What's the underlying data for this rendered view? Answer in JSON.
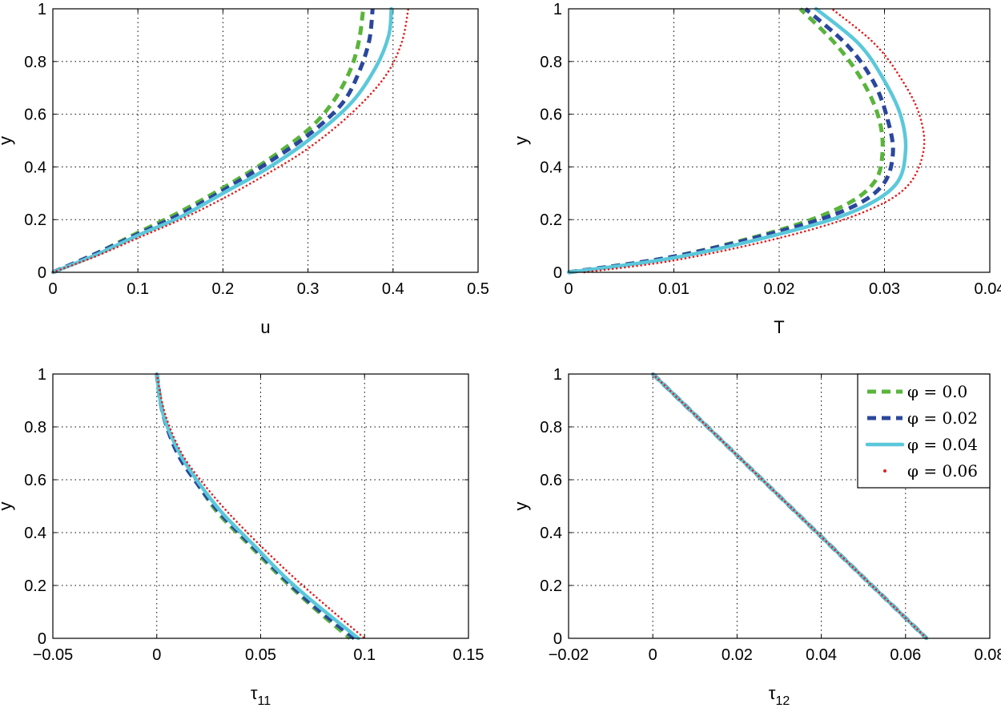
{
  "legend": {
    "entries": [
      {
        "label": "φ = 0.0",
        "color": "#5ab43c",
        "style": "dash"
      },
      {
        "label": "φ = 0.02",
        "color": "#2b479b",
        "style": "dash"
      },
      {
        "label": "φ = 0.04",
        "color": "#5bc8da",
        "style": "solid"
      },
      {
        "label": "φ = 0.06",
        "color": "#e02020",
        "style": "dot"
      }
    ]
  },
  "chart_data": [
    {
      "type": "line",
      "xlabel": "u",
      "ylabel": "y",
      "xlim": [
        0,
        0.5
      ],
      "ylim": [
        0,
        1
      ],
      "xticks": [
        "0",
        "0.1",
        "0.2",
        "0.3",
        "0.4",
        "0.5"
      ],
      "yticks": [
        "0",
        "0.2",
        "0.4",
        "0.6",
        "0.8",
        "1"
      ],
      "grid": true,
      "series": [
        {
          "name": "φ = 0.0",
          "x": [
            0,
            0.05,
            0.1,
            0.15,
            0.2,
            0.25,
            0.3,
            0.33,
            0.35,
            0.36,
            0.365
          ],
          "y": [
            0,
            0.07,
            0.15,
            0.23,
            0.32,
            0.42,
            0.54,
            0.65,
            0.77,
            0.88,
            1.0
          ]
        },
        {
          "name": "φ = 0.02",
          "x": [
            0,
            0.05,
            0.1,
            0.15,
            0.2,
            0.25,
            0.3,
            0.34,
            0.36,
            0.372,
            0.376
          ],
          "y": [
            0,
            0.07,
            0.145,
            0.22,
            0.31,
            0.41,
            0.52,
            0.64,
            0.76,
            0.88,
            1.0
          ]
        },
        {
          "name": "φ = 0.04",
          "x": [
            0,
            0.05,
            0.1,
            0.15,
            0.2,
            0.25,
            0.3,
            0.35,
            0.38,
            0.395,
            0.398
          ],
          "y": [
            0,
            0.065,
            0.14,
            0.21,
            0.3,
            0.39,
            0.5,
            0.64,
            0.78,
            0.9,
            1.0
          ]
        },
        {
          "name": "φ = 0.06",
          "x": [
            0,
            0.05,
            0.1,
            0.15,
            0.2,
            0.25,
            0.3,
            0.35,
            0.39,
            0.41,
            0.418
          ],
          "y": [
            0,
            0.06,
            0.13,
            0.2,
            0.28,
            0.37,
            0.47,
            0.6,
            0.74,
            0.87,
            1.0
          ]
        }
      ]
    },
    {
      "type": "line",
      "xlabel": "T",
      "ylabel": "y",
      "xlim": [
        0,
        0.04
      ],
      "ylim": [
        0,
        1
      ],
      "xticks": [
        "0",
        "0.01",
        "0.02",
        "0.03",
        "0.04"
      ],
      "yticks": [
        "0",
        "0.2",
        "0.4",
        "0.6",
        "0.8",
        "1"
      ],
      "grid": true,
      "series": [
        {
          "name": "φ = 0.0",
          "x": [
            0,
            0.01,
            0.02,
            0.026,
            0.029,
            0.0298,
            0.0295,
            0.028,
            0.0255,
            0.022
          ],
          "y": [
            0,
            0.06,
            0.16,
            0.25,
            0.34,
            0.45,
            0.58,
            0.72,
            0.86,
            1.0
          ]
        },
        {
          "name": "φ = 0.02",
          "x": [
            0,
            0.01,
            0.02,
            0.0265,
            0.0298,
            0.0308,
            0.0303,
            0.029,
            0.0265,
            0.0225
          ],
          "y": [
            0,
            0.06,
            0.155,
            0.24,
            0.33,
            0.45,
            0.58,
            0.72,
            0.86,
            1.0
          ]
        },
        {
          "name": "φ = 0.04",
          "x": [
            0,
            0.01,
            0.02,
            0.027,
            0.031,
            0.032,
            0.0315,
            0.0298,
            0.0275,
            0.0235
          ],
          "y": [
            0,
            0.055,
            0.145,
            0.23,
            0.33,
            0.46,
            0.6,
            0.74,
            0.87,
            1.0
          ]
        },
        {
          "name": "φ = 0.06",
          "x": [
            0.0015,
            0.01,
            0.02,
            0.0275,
            0.032,
            0.0337,
            0.0333,
            0.0315,
            0.029,
            0.025
          ],
          "y": [
            0,
            0.045,
            0.13,
            0.22,
            0.32,
            0.46,
            0.6,
            0.74,
            0.87,
            1.0
          ]
        }
      ]
    },
    {
      "type": "line",
      "xlabel": "τ11",
      "ylabel": "y",
      "xlim": [
        -0.05,
        0.15
      ],
      "ylim": [
        0,
        1
      ],
      "xticks": [
        "−0.05",
        "0",
        "0.05",
        "0.1",
        "0.15"
      ],
      "yticks": [
        "0",
        "0.2",
        "0.4",
        "0.6",
        "0.8",
        "1"
      ],
      "grid": true,
      "series": [
        {
          "name": "φ = 0.0",
          "x": [
            0,
            0.003,
            0.01,
            0.02,
            0.03,
            0.045,
            0.06,
            0.075,
            0.093
          ],
          "y": [
            1.0,
            0.85,
            0.7,
            0.58,
            0.47,
            0.35,
            0.23,
            0.12,
            0
          ]
        },
        {
          "name": "φ = 0.02",
          "x": [
            0,
            0.003,
            0.01,
            0.02,
            0.031,
            0.046,
            0.061,
            0.076,
            0.095
          ],
          "y": [
            1.0,
            0.85,
            0.7,
            0.58,
            0.47,
            0.35,
            0.23,
            0.12,
            0
          ]
        },
        {
          "name": "φ = 0.04",
          "x": [
            0,
            0.003,
            0.011,
            0.021,
            0.032,
            0.047,
            0.062,
            0.078,
            0.097
          ],
          "y": [
            1.0,
            0.85,
            0.7,
            0.58,
            0.47,
            0.35,
            0.23,
            0.12,
            0
          ]
        },
        {
          "name": "φ = 0.06",
          "x": [
            0,
            0.004,
            0.012,
            0.023,
            0.035,
            0.05,
            0.066,
            0.082,
            0.1
          ],
          "y": [
            1.0,
            0.85,
            0.7,
            0.58,
            0.47,
            0.35,
            0.23,
            0.12,
            0
          ]
        }
      ]
    },
    {
      "type": "line",
      "xlabel": "τ12",
      "ylabel": "y",
      "xlim": [
        -0.02,
        0.08
      ],
      "ylim": [
        0,
        1
      ],
      "xticks": [
        "−0.02",
        "0",
        "0.02",
        "0.04",
        "0.06",
        "0.08"
      ],
      "yticks": [
        "0",
        "0.2",
        "0.4",
        "0.6",
        "0.8",
        "1"
      ],
      "grid": true,
      "legend": "top-right",
      "series": [
        {
          "name": "φ = 0.0",
          "x": [
            0,
            0.013,
            0.026,
            0.039,
            0.052,
            0.065
          ],
          "y": [
            1.0,
            0.8,
            0.6,
            0.4,
            0.2,
            0
          ]
        },
        {
          "name": "φ = 0.02",
          "x": [
            0,
            0.013,
            0.026,
            0.039,
            0.052,
            0.065
          ],
          "y": [
            1.0,
            0.8,
            0.6,
            0.4,
            0.2,
            0
          ]
        },
        {
          "name": "φ = 0.04",
          "x": [
            0,
            0.013,
            0.026,
            0.039,
            0.052,
            0.065
          ],
          "y": [
            1.0,
            0.8,
            0.6,
            0.4,
            0.2,
            0
          ]
        },
        {
          "name": "φ = 0.06",
          "x": [
            0,
            0.013,
            0.026,
            0.039,
            0.052,
            0.065
          ],
          "y": [
            1.0,
            0.8,
            0.6,
            0.4,
            0.2,
            0
          ]
        }
      ]
    }
  ]
}
